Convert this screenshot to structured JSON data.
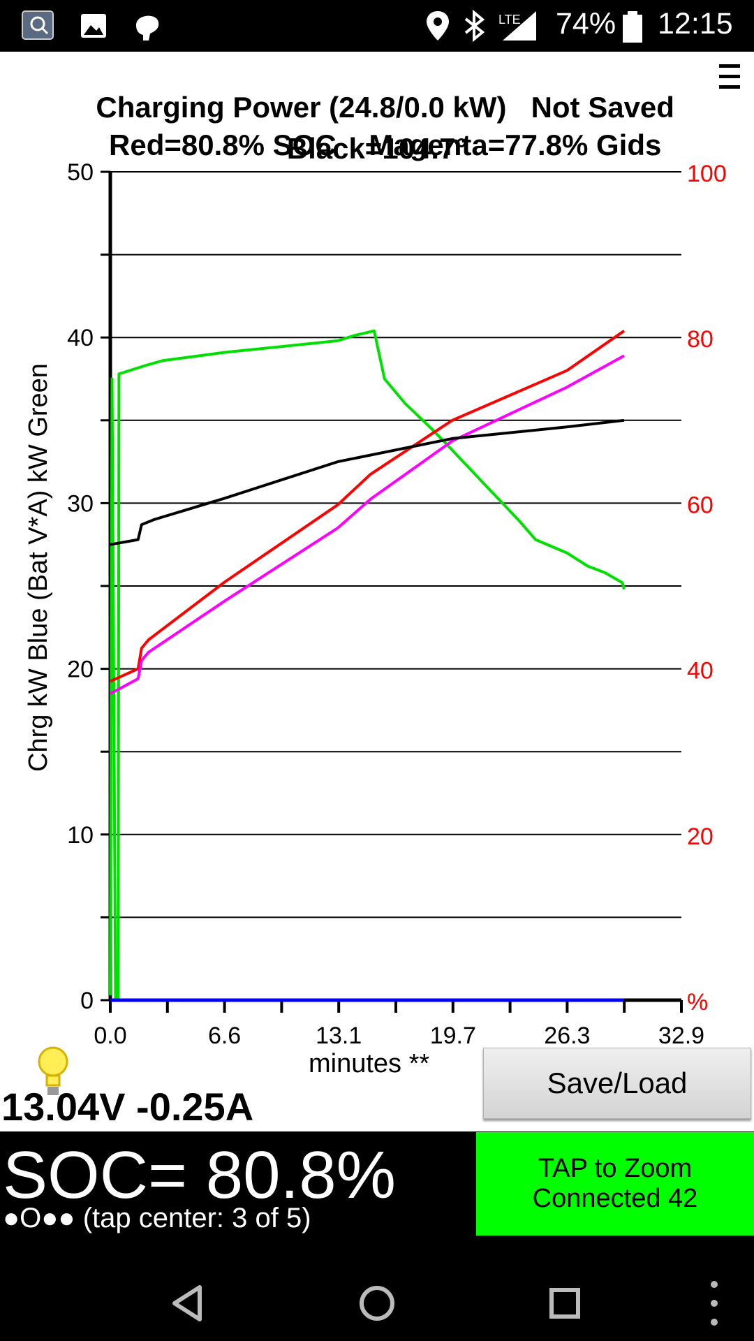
{
  "statusbar": {
    "battery_percent": "74%",
    "time": "12:15",
    "network": "LTE",
    "icons": [
      "app-icon",
      "image-icon",
      "face-icon",
      "location-icon",
      "bluetooth-icon",
      "signal-icon",
      "battery-icon"
    ]
  },
  "header": {
    "title": "Charging Power (24.8/0.0 kW)",
    "save_status": "Not Saved",
    "line2_red": "Red=80.8% SOC",
    "line2_magenta": "Magenta=77.8% Gids",
    "line3": "Black=104.7°",
    "menu_icon": "hamburger-menu-icon"
  },
  "chart_data": {
    "type": "line",
    "ylabel": "Chrg kW Blue  (Bat V*A) kW Green",
    "xlabel": "minutes **",
    "xlim": [
      0,
      32.9
    ],
    "ylim_left": [
      0,
      50
    ],
    "ylim_right": [
      0,
      100
    ],
    "x_ticks": [
      "0.0",
      "6.6",
      "13.1",
      "19.7",
      "26.3",
      "32.9"
    ],
    "y_ticks_left": [
      "0",
      "10",
      "20",
      "30",
      "40",
      "50"
    ],
    "y_ticks_right": [
      "%",
      "20",
      "40",
      "60",
      "80",
      "100"
    ],
    "grid": true,
    "colors": {
      "green": "#00e000",
      "red": "#ff0000",
      "magenta": "#ff00ff",
      "black": "#000000",
      "blue": "#0000ff",
      "right_axis": "#ff0000"
    },
    "series": [
      {
        "color": "#00e000",
        "axis": "left",
        "points": [
          [
            0.0,
            0.3
          ],
          [
            0.1,
            37.5
          ],
          [
            0.3,
            0
          ],
          [
            0.45,
            0
          ],
          [
            0.5,
            37.8
          ],
          [
            2.0,
            38.3
          ],
          [
            3.0,
            38.6
          ],
          [
            6.6,
            39.1
          ],
          [
            13.1,
            39.8
          ],
          [
            14.0,
            40.1
          ],
          [
            14.8,
            40.3
          ],
          [
            15.2,
            40.4
          ],
          [
            15.8,
            37.5
          ],
          [
            17.0,
            36.0
          ],
          [
            18.5,
            34.5
          ],
          [
            19.7,
            33.2
          ],
          [
            21.5,
            31.2
          ],
          [
            23.5,
            29.0
          ],
          [
            24.5,
            27.8
          ],
          [
            26.3,
            27.0
          ],
          [
            27.5,
            26.2
          ],
          [
            28.5,
            25.8
          ],
          [
            29.5,
            25.2
          ],
          [
            29.6,
            24.8
          ]
        ]
      },
      {
        "color": "#ff0000",
        "axis": "right",
        "points": [
          [
            0.0,
            38.5
          ],
          [
            1.6,
            40.0
          ],
          [
            1.8,
            42.5
          ],
          [
            2.2,
            43.5
          ],
          [
            6.6,
            50.5
          ],
          [
            13.1,
            59.8
          ],
          [
            15.0,
            63.5
          ],
          [
            19.7,
            70.0
          ],
          [
            26.3,
            76.0
          ],
          [
            29.6,
            80.8
          ]
        ]
      },
      {
        "color": "#ff00ff",
        "axis": "right",
        "points": [
          [
            0.0,
            37.0
          ],
          [
            1.6,
            38.8
          ],
          [
            1.8,
            41.0
          ],
          [
            2.2,
            42.0
          ],
          [
            6.6,
            48.2
          ],
          [
            13.1,
            57.0
          ],
          [
            15.0,
            60.5
          ],
          [
            19.7,
            67.5
          ],
          [
            26.3,
            74.0
          ],
          [
            29.6,
            77.8
          ]
        ]
      },
      {
        "color": "#000000",
        "axis": "left",
        "points": [
          [
            0.0,
            27.5
          ],
          [
            1.6,
            27.8
          ],
          [
            1.8,
            28.7
          ],
          [
            2.5,
            29.0
          ],
          [
            6.6,
            30.3
          ],
          [
            13.1,
            32.5
          ],
          [
            19.7,
            33.9
          ],
          [
            26.3,
            34.6
          ],
          [
            29.6,
            35.0
          ]
        ]
      },
      {
        "color": "#0000ff",
        "axis": "left",
        "points": [
          [
            0.0,
            0.0
          ],
          [
            29.6,
            0.0
          ]
        ]
      }
    ]
  },
  "readout": {
    "bulb_icon": "lightbulb-icon",
    "voltage_current": "13.04V -0.25A"
  },
  "buttons": {
    "save_load": "Save/Load"
  },
  "footer": {
    "soc": "SOC= 80.8%",
    "tap_hint": "●O●● (tap center: 3 of 5)",
    "zoom_line1": "TAP to Zoom",
    "zoom_line2": "Connected 42"
  },
  "navbar": {
    "icons": [
      "back-icon",
      "home-icon",
      "recents-icon",
      "overflow-menu-icon"
    ]
  }
}
